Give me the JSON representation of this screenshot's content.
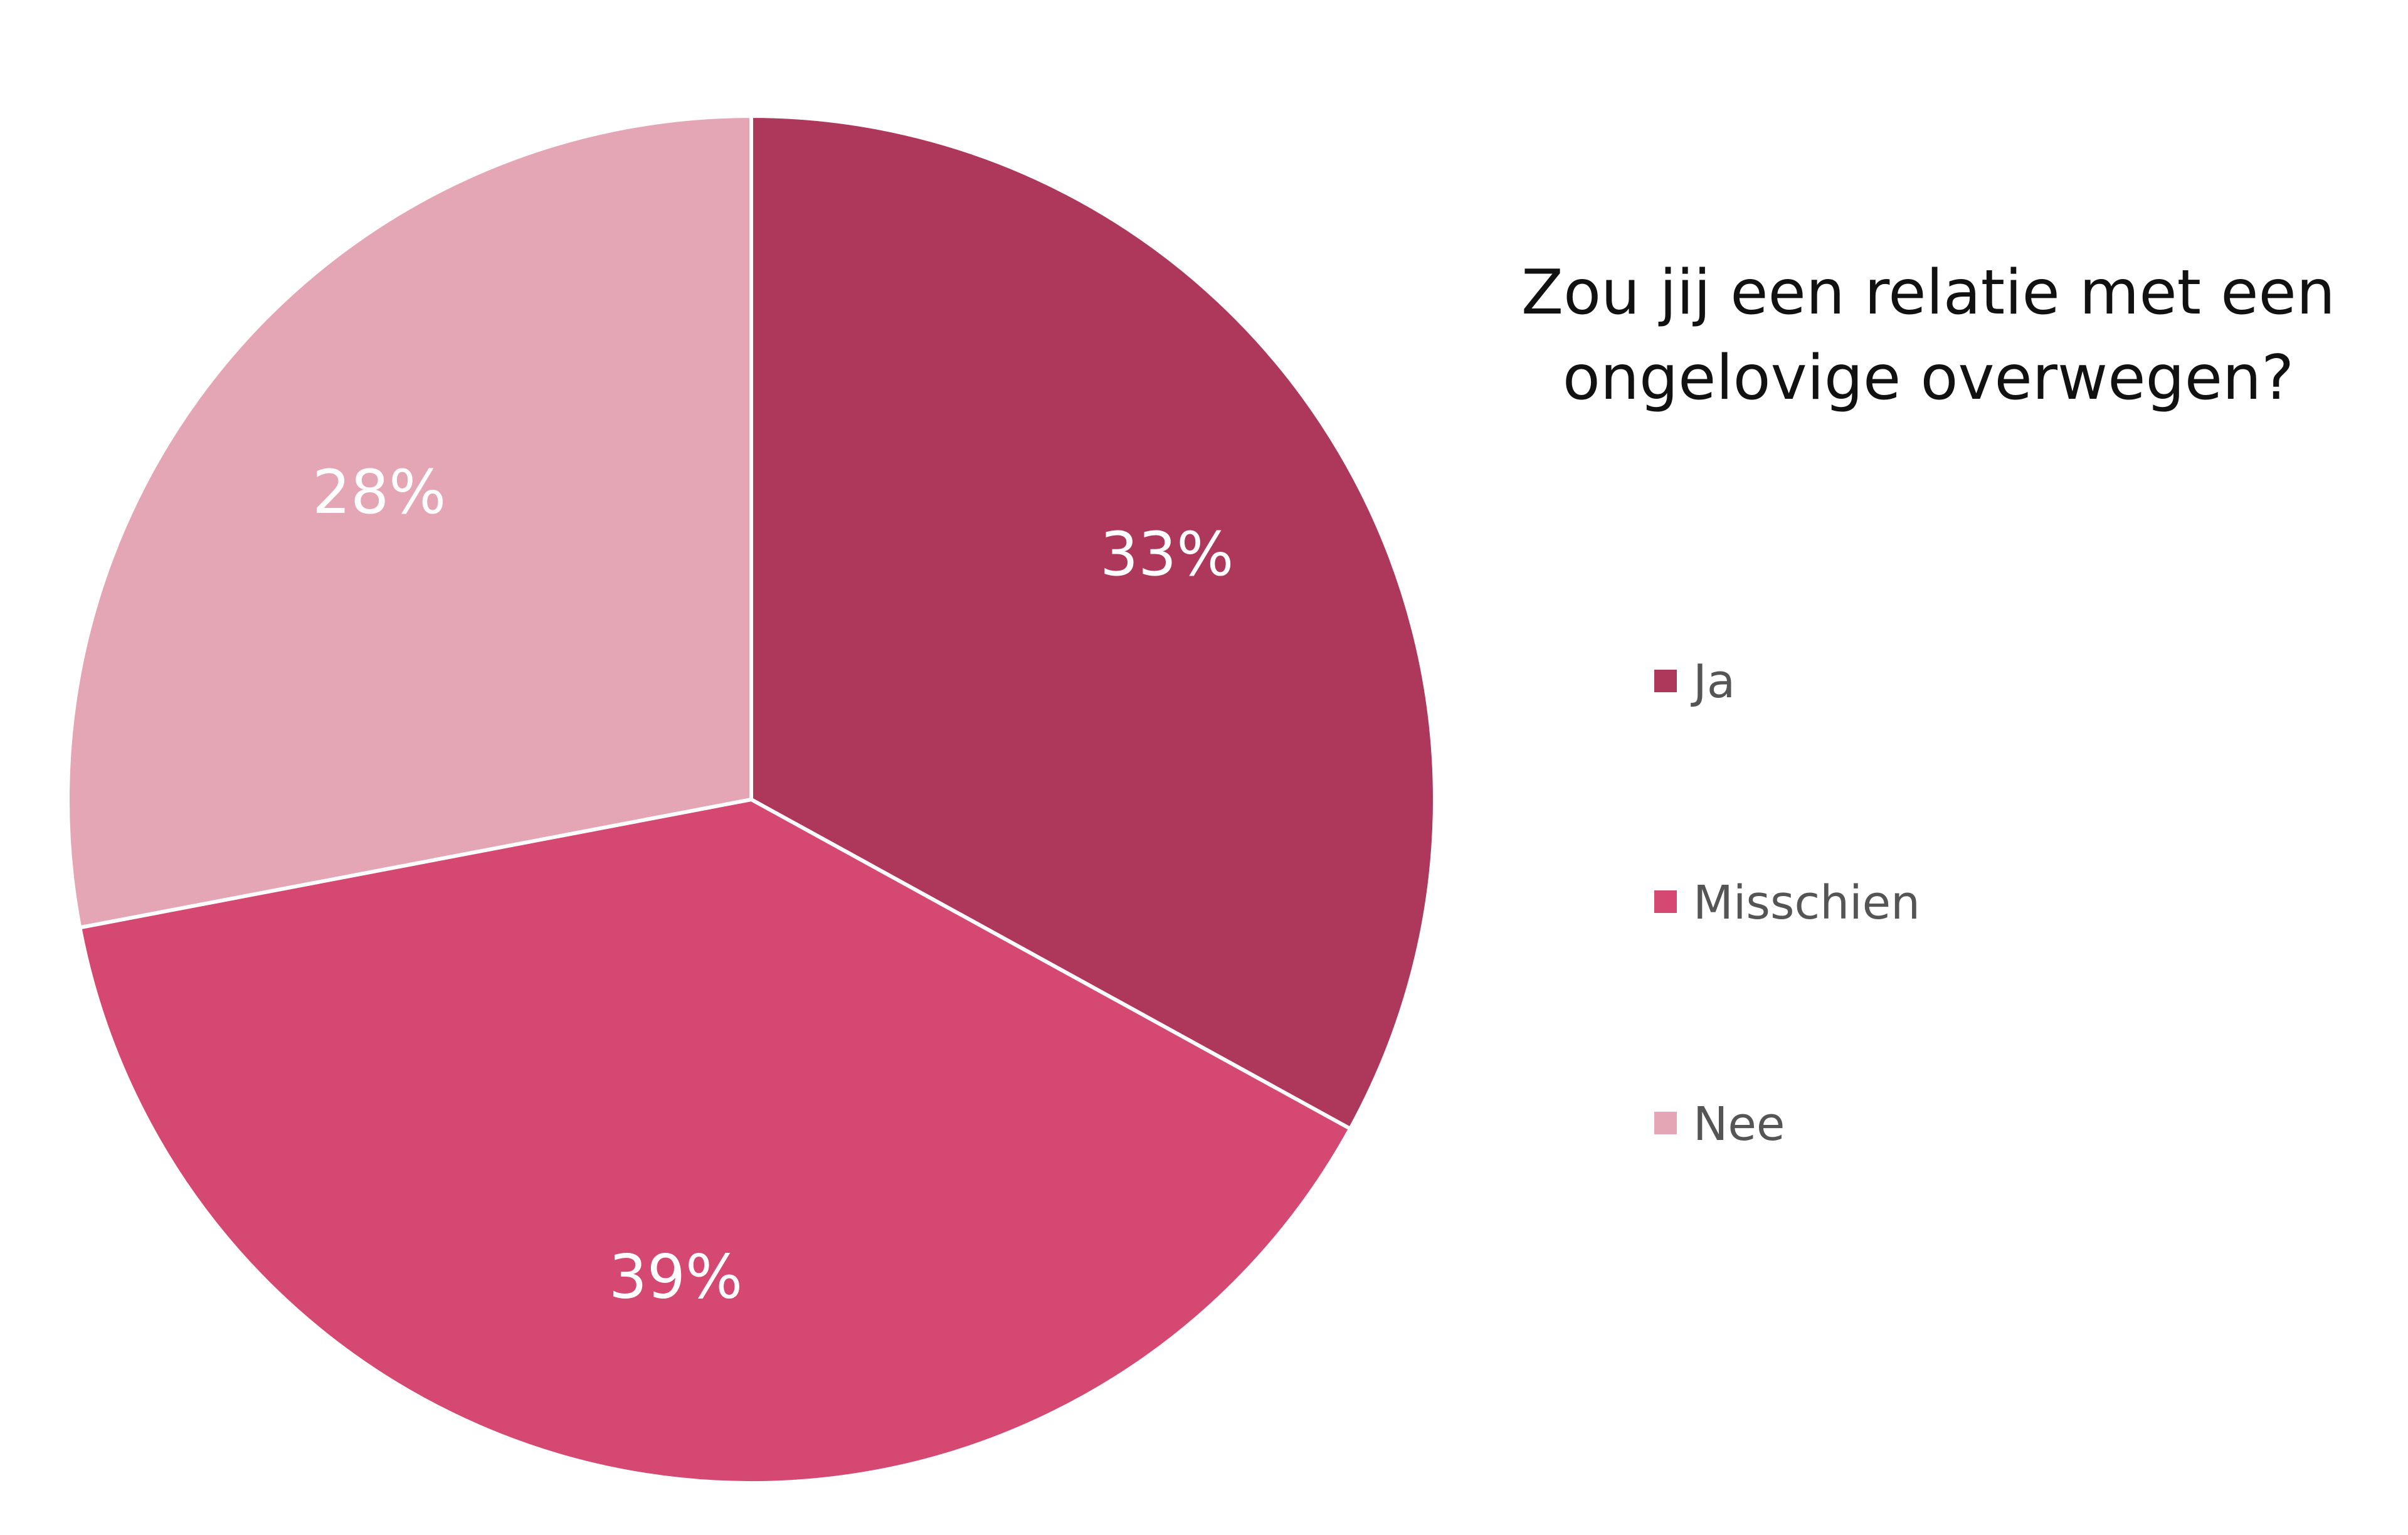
{
  "chart_data": {
    "type": "pie",
    "title": [
      "Zou jij een relatie met een",
      "ongelovige overwegen?"
    ],
    "legend_position": "right",
    "slices": [
      {
        "label": "Ja",
        "value": 33,
        "value_label": "33%",
        "color": "#ae375c"
      },
      {
        "label": "Misschien",
        "value": 39,
        "value_label": "39%",
        "color": "#d54872"
      },
      {
        "label": "Nee",
        "value": 28,
        "value_label": "28%",
        "color": "#e4a6b4"
      }
    ]
  }
}
